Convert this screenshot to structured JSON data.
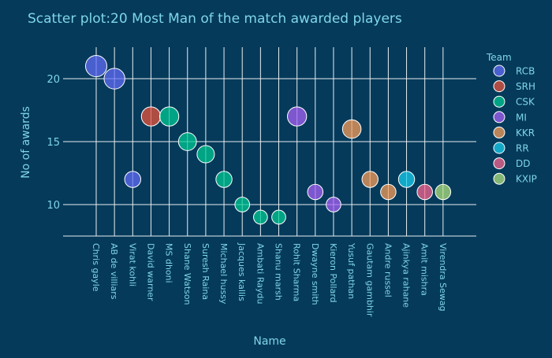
{
  "chart_data": {
    "type": "scatter",
    "title": "Scatter plot:20 Most Man of the match awarded players",
    "xlabel": "Name",
    "ylabel": "No of awards",
    "legend_title": "Team",
    "legend_position": "right",
    "grid": true,
    "ylim": [
      7.5,
      22.5
    ],
    "yticks": [
      10,
      15,
      20
    ],
    "categories": [
      "Chris gayle",
      "AB de villiars",
      "Virat kohli",
      "David warner",
      "MS dhoni",
      "Shane Watson",
      "Suresh Raina",
      "Michael hussy",
      "Jacques kallis",
      "Ambati Raydu",
      "Shanu marsh",
      "Rohit Sharma",
      "Dwayne smith",
      "Kieron Pollard",
      "Yusuf pathan",
      "Gautam gambhir",
      "Andre russel",
      "Ajinkya rahane",
      "Amit mishra",
      "Virendra Sewag"
    ],
    "series": [
      {
        "name": "RCB",
        "color": "#636efa",
        "points": [
          {
            "x": "Chris gayle",
            "y": 21
          },
          {
            "x": "AB de villiars",
            "y": 20
          },
          {
            "x": "Virat kohli",
            "y": 12
          }
        ]
      },
      {
        "name": "SRH",
        "color": "#ef553b",
        "points": [
          {
            "x": "David warner",
            "y": 17
          }
        ]
      },
      {
        "name": "CSK",
        "color": "#00cc96",
        "points": [
          {
            "x": "MS dhoni",
            "y": 17
          },
          {
            "x": "Shane Watson",
            "y": 15
          },
          {
            "x": "Suresh Raina",
            "y": 14
          },
          {
            "x": "Michael hussy",
            "y": 12
          },
          {
            "x": "Jacques kallis",
            "y": 10
          },
          {
            "x": "Ambati Raydu",
            "y": 9
          },
          {
            "x": "Shanu marsh",
            "y": 9
          }
        ]
      },
      {
        "name": "MI",
        "color": "#ab63fa",
        "points": [
          {
            "x": "Rohit Sharma",
            "y": 17
          },
          {
            "x": "Dwayne smith",
            "y": 11
          },
          {
            "x": "Kieron Pollard",
            "y": 10
          }
        ]
      },
      {
        "name": "KKR",
        "color": "#ffa15a",
        "points": [
          {
            "x": "Yusuf pathan",
            "y": 16
          },
          {
            "x": "Gautam gambhir",
            "y": 12
          },
          {
            "x": "Andre russel",
            "y": 11
          }
        ]
      },
      {
        "name": "RR",
        "color": "#19d3f3",
        "points": [
          {
            "x": "Ajinkya rahane",
            "y": 12
          }
        ]
      },
      {
        "name": "DD",
        "color": "#ff6692",
        "points": [
          {
            "x": "Amit mishra",
            "y": 11
          }
        ]
      },
      {
        "name": "KXIP",
        "color": "#b6e880",
        "points": [
          {
            "x": "Virendra Sewag",
            "y": 11
          }
        ]
      }
    ],
    "colors": {
      "background": "#053a5a",
      "text": "#7fd6e8",
      "grid": "#e8eef2"
    }
  }
}
